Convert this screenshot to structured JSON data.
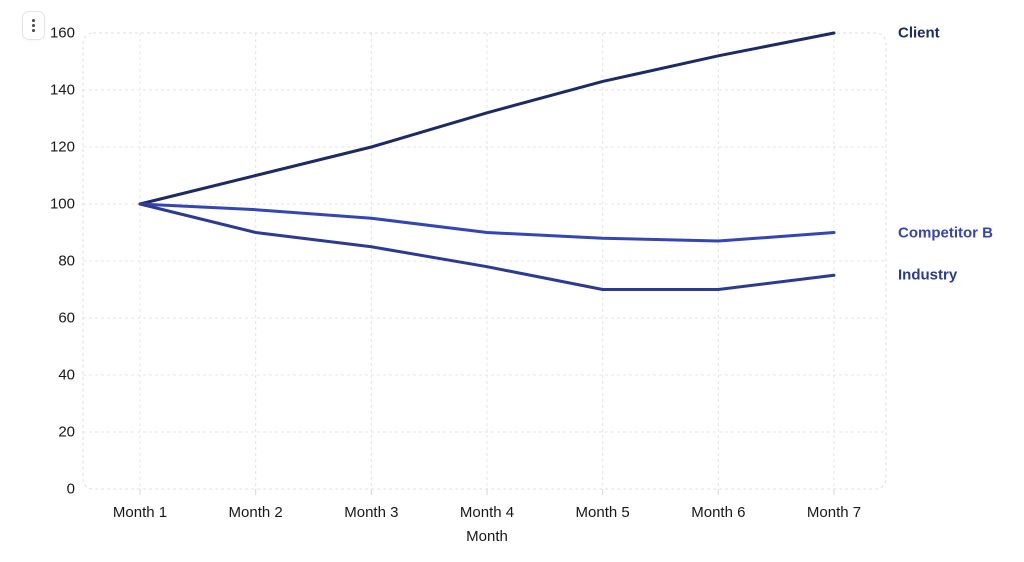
{
  "page": {
    "background": "#ffffff",
    "text_color": "#18181b",
    "grid_color": "#e4e4e4"
  },
  "toolbar": {
    "menu_icon": "kebab-vertical-icon"
  },
  "chart_data": {
    "type": "line",
    "title": "",
    "xlabel": "Month",
    "ylabel": "",
    "categories": [
      "Month 1",
      "Month 2",
      "Month 3",
      "Month 4",
      "Month 5",
      "Month 6",
      "Month 7"
    ],
    "ylim": [
      0,
      160
    ],
    "ytick_step": 20,
    "grid": "dashed",
    "legend_position": "right-edge-labels",
    "series": [
      {
        "name": "Client",
        "values": [
          100,
          110,
          120,
          132,
          143,
          152,
          160
        ],
        "color": "#1e2a66"
      },
      {
        "name": "Competitor B",
        "values": [
          100,
          98,
          95,
          90,
          88,
          87,
          90
        ],
        "color": "#3445b4"
      },
      {
        "name": "Industry",
        "values": [
          100,
          90,
          85,
          78,
          70,
          70,
          75
        ],
        "color": "#2c3a91"
      }
    ]
  }
}
